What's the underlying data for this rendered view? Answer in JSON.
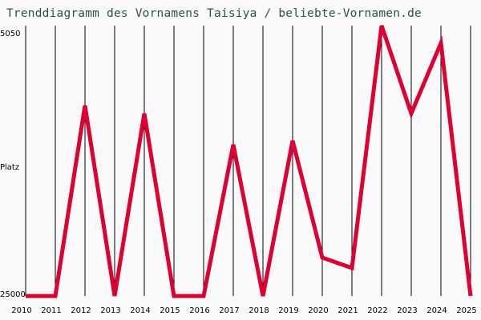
{
  "title": "Trenddiagramm des Vornamens Taisiya / beliebte-Vornamen.de",
  "colors": {
    "line": "#dd0033",
    "grid": "#000000",
    "background": "#fafafa",
    "title": "#2f4f4f"
  },
  "chart_data": {
    "type": "line",
    "title": "Trenddiagramm des Vornamens Taisiya / beliebte-Vornamen.de",
    "xlabel": "",
    "ylabel": "Platz",
    "y_inverted": true,
    "ylim": [
      25000,
      5050
    ],
    "y_ticks": [
      "5050",
      "25000"
    ],
    "grid": "vertical",
    "categories": [
      "2010",
      "2011",
      "2012",
      "2013",
      "2014",
      "2015",
      "2016",
      "2017",
      "2018",
      "2019",
      "2020",
      "2021",
      "2022",
      "2023",
      "2024",
      "2025"
    ],
    "series": [
      {
        "name": "Taisiya",
        "values": [
          25000,
          25000,
          10770,
          25000,
          11370,
          25000,
          25000,
          13700,
          25000,
          13400,
          22130,
          22910,
          4800,
          11370,
          6100,
          25000
        ]
      }
    ]
  }
}
